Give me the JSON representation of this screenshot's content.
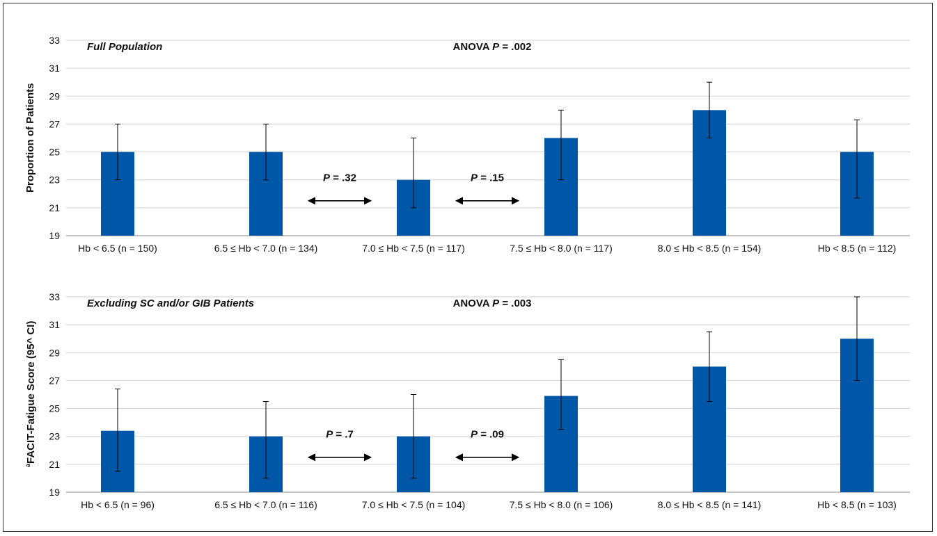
{
  "ylabel_top": "Proportion of Patients",
  "ylabel_bottom": "aFACIT-Fatigue Score (95^ CI)",
  "ylabel_bottom_superscript": "a",
  "ylabel_bottom_text": "FACIT-Fatigue Score (95^ CI)",
  "colors": {
    "bar": "#0057a8",
    "grid": "#d0d0d0",
    "axis": "#888888",
    "text": "#111111"
  },
  "chart_data": [
    {
      "type": "bar",
      "panel_label": "Full Population",
      "anova_prefix": "ANOVA ",
      "anova_p_symbol": "P",
      "anova_value": " = .002",
      "ylim": [
        19,
        33
      ],
      "yticks": [
        19,
        21,
        23,
        25,
        27,
        29,
        31,
        33
      ],
      "categories": [
        "Hb < 6.5 (n = 150)",
        "6.5 ≤ Hb < 7.0 (n = 134)",
        "7.0 ≤ Hb < 7.5 (n = 117)",
        "7.5 ≤ Hb < 8.0 (n = 117)",
        "8.0 ≤ Hb < 8.5 (n = 154)",
        "Hb < 8.5 (n = 112)"
      ],
      "values": [
        25,
        25,
        23,
        26,
        28,
        25
      ],
      "ci_low": [
        23,
        23,
        21,
        23,
        26,
        21.7
      ],
      "ci_high": [
        27,
        27,
        26,
        28,
        30,
        27.3
      ],
      "comparisons": [
        {
          "between": [
            1,
            2
          ],
          "p_symbol": "P",
          "p_text": " = .32"
        },
        {
          "between": [
            2,
            3
          ],
          "p_symbol": "P",
          "p_text": " = .15"
        }
      ]
    },
    {
      "type": "bar",
      "panel_label": "Excluding SC and/or GIB Patients",
      "anova_prefix": "ANOVA ",
      "anova_p_symbol": "P",
      "anova_value": " = .003",
      "ylim": [
        19,
        33
      ],
      "yticks": [
        19,
        21,
        23,
        25,
        27,
        29,
        31,
        33
      ],
      "categories": [
        "Hb < 6.5 (n = 96)",
        "6.5 ≤ Hb < 7.0 (n = 116)",
        "7.0 ≤ Hb < 7.5 (n = 104)",
        "7.5 ≤ Hb < 8.0 (n = 106)",
        "8.0 ≤ Hb < 8.5 (n = 141)",
        "Hb < 8.5 (n = 103)"
      ],
      "values": [
        23.4,
        23,
        23,
        25.9,
        28,
        30
      ],
      "ci_low": [
        20.5,
        20,
        20,
        23.5,
        25.5,
        27
      ],
      "ci_high": [
        26.4,
        25.5,
        26,
        28.5,
        30.5,
        33
      ],
      "comparisons": [
        {
          "between": [
            1,
            2
          ],
          "p_symbol": "P",
          "p_text": " = .7"
        },
        {
          "between": [
            2,
            3
          ],
          "p_symbol": "P",
          "p_text": " = .09"
        }
      ]
    }
  ]
}
